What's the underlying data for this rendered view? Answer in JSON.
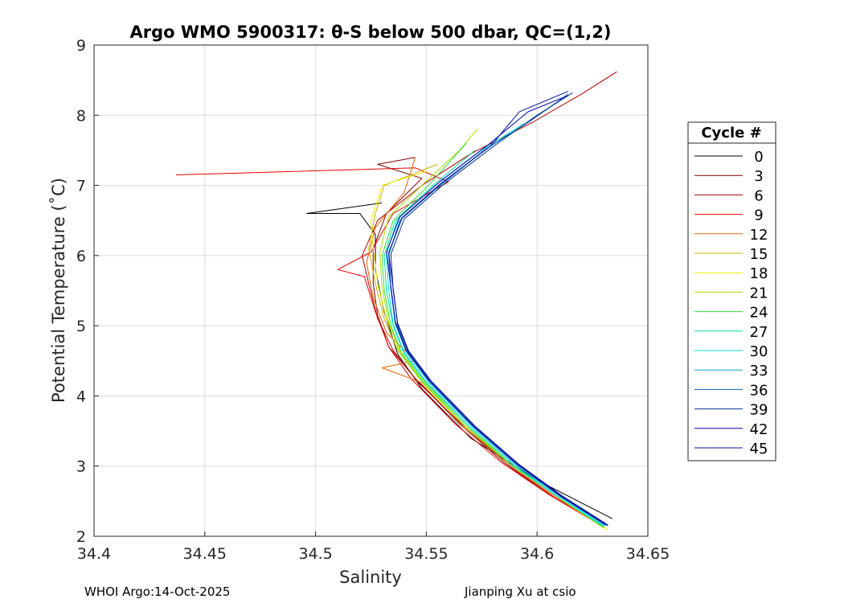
{
  "chart_data": {
    "type": "line",
    "title": "Argo WMO 5900317: θ-S below 500 dbar,  QC=(1,2)",
    "xlabel": "Salinity",
    "ylabel": "Potential Temperature (˚C)",
    "xlim": [
      34.4,
      34.65
    ],
    "ylim": [
      2,
      9
    ],
    "xticks": [
      "34.4",
      "34.45",
      "34.5",
      "34.55",
      "34.6",
      "34.65"
    ],
    "yticks": [
      "2",
      "3",
      "4",
      "5",
      "6",
      "7",
      "8",
      "9"
    ],
    "grid": true,
    "legend_title": "Cycle #",
    "legend_position": "outside-right",
    "legend": [
      {
        "label": "0",
        "color": "#000000"
      },
      {
        "label": "3",
        "color": "#7f0000"
      },
      {
        "label": "6",
        "color": "#b30000"
      },
      {
        "label": "9",
        "color": "#e60000"
      },
      {
        "label": "12",
        "color": "#e66000"
      },
      {
        "label": "15",
        "color": "#ccb000"
      },
      {
        "label": "18",
        "color": "#f0f000"
      },
      {
        "label": "21",
        "color": "#a8e000"
      },
      {
        "label": "24",
        "color": "#30e030"
      },
      {
        "label": "27",
        "color": "#00e0a0"
      },
      {
        "label": "30",
        "color": "#00e0e0"
      },
      {
        "label": "33",
        "color": "#00a8c8"
      },
      {
        "label": "36",
        "color": "#0060b0"
      },
      {
        "label": "39",
        "color": "#003090"
      },
      {
        "label": "42",
        "color": "#0000b0"
      },
      {
        "label": "45",
        "color": "#0010a0"
      }
    ],
    "base_curve": [
      {
        "s": 34.63,
        "t": 2.15
      },
      {
        "s": 34.61,
        "t": 2.55
      },
      {
        "s": 34.59,
        "t": 3.0
      },
      {
        "s": 34.57,
        "t": 3.55
      },
      {
        "s": 34.55,
        "t": 4.2
      },
      {
        "s": 34.54,
        "t": 4.6
      },
      {
        "s": 34.535,
        "t": 5.0
      },
      {
        "s": 34.533,
        "t": 5.5
      },
      {
        "s": 34.532,
        "t": 6.0
      },
      {
        "s": 34.537,
        "t": 6.5
      },
      {
        "s": 34.555,
        "t": 7.0
      },
      {
        "s": 34.575,
        "t": 7.5
      },
      {
        "s": 34.595,
        "t": 7.9
      },
      {
        "s": 34.615,
        "t": 8.3
      }
    ],
    "series": [
      {
        "name": "0",
        "color": "#000000",
        "points": [
          {
            "s": 34.634,
            "t": 2.25
          },
          {
            "s": 34.6,
            "t": 2.8
          },
          {
            "s": 34.57,
            "t": 3.4
          },
          {
            "s": 34.548,
            "t": 4.1
          },
          {
            "s": 34.537,
            "t": 4.6
          },
          {
            "s": 34.531,
            "t": 5.2
          },
          {
            "s": 34.527,
            "t": 5.8
          },
          {
            "s": 34.527,
            "t": 6.3
          },
          {
            "s": 34.52,
            "t": 6.6
          },
          {
            "s": 34.496,
            "t": 6.6
          },
          {
            "s": 34.53,
            "t": 6.75
          }
        ]
      },
      {
        "name": "3",
        "color": "#7f0000",
        "points": [
          {
            "s": 34.63,
            "t": 2.15
          },
          {
            "s": 34.605,
            "t": 2.6
          },
          {
            "s": 34.585,
            "t": 3.05
          },
          {
            "s": 34.565,
            "t": 3.6
          },
          {
            "s": 34.545,
            "t": 4.25
          },
          {
            "s": 34.533,
            "t": 4.7
          },
          {
            "s": 34.528,
            "t": 5.15
          },
          {
            "s": 34.526,
            "t": 5.6
          },
          {
            "s": 34.526,
            "t": 6.1
          },
          {
            "s": 34.532,
            "t": 6.6
          },
          {
            "s": 34.548,
            "t": 7.1
          },
          {
            "s": 34.528,
            "t": 7.3
          },
          {
            "s": 34.545,
            "t": 7.4
          }
        ]
      },
      {
        "name": "6",
        "color": "#b30000",
        "points": [
          {
            "s": 34.63,
            "t": 2.15
          },
          {
            "s": 34.608,
            "t": 2.55
          },
          {
            "s": 34.588,
            "t": 3.0
          },
          {
            "s": 34.566,
            "t": 3.6
          },
          {
            "s": 34.546,
            "t": 4.2
          },
          {
            "s": 34.535,
            "t": 4.65
          },
          {
            "s": 34.528,
            "t": 5.1
          },
          {
            "s": 34.524,
            "t": 5.6
          },
          {
            "s": 34.521,
            "t": 6.0
          },
          {
            "s": 34.528,
            "t": 6.5
          },
          {
            "s": 34.548,
            "t": 7.0
          },
          {
            "s": 34.57,
            "t": 7.45
          },
          {
            "s": 34.598,
            "t": 7.9
          },
          {
            "s": 34.62,
            "t": 8.3
          },
          {
            "s": 34.636,
            "t": 8.62
          }
        ]
      },
      {
        "name": "9",
        "color": "#e60000",
        "points": [
          {
            "s": 34.629,
            "t": 2.15
          },
          {
            "s": 34.605,
            "t": 2.6
          },
          {
            "s": 34.584,
            "t": 3.05
          },
          {
            "s": 34.563,
            "t": 3.6
          },
          {
            "s": 34.543,
            "t": 4.25
          },
          {
            "s": 34.533,
            "t": 4.7
          },
          {
            "s": 34.527,
            "t": 5.2
          },
          {
            "s": 34.522,
            "t": 5.7
          },
          {
            "s": 34.51,
            "t": 5.8
          },
          {
            "s": 34.525,
            "t": 6.05
          },
          {
            "s": 34.535,
            "t": 6.6
          },
          {
            "s": 34.56,
            "t": 7.05
          },
          {
            "s": 34.545,
            "t": 7.25
          },
          {
            "s": 34.437,
            "t": 7.15
          }
        ]
      },
      {
        "name": "12",
        "color": "#e66000",
        "points": [
          {
            "s": 34.63,
            "t": 2.12
          },
          {
            "s": 34.609,
            "t": 2.55
          },
          {
            "s": 34.588,
            "t": 3.0
          },
          {
            "s": 34.567,
            "t": 3.55
          },
          {
            "s": 34.547,
            "t": 4.2
          },
          {
            "s": 34.53,
            "t": 4.4
          },
          {
            "s": 34.545,
            "t": 4.5
          },
          {
            "s": 34.532,
            "t": 4.9
          },
          {
            "s": 34.526,
            "t": 5.4
          },
          {
            "s": 34.523,
            "t": 5.9
          },
          {
            "s": 34.527,
            "t": 6.4
          },
          {
            "s": 34.54,
            "t": 6.9
          },
          {
            "s": 34.545,
            "t": 7.4
          }
        ]
      },
      {
        "name": "15",
        "color": "#ccb000",
        "points": [
          {
            "s": 34.631,
            "t": 2.12
          },
          {
            "s": 34.61,
            "t": 2.55
          },
          {
            "s": 34.589,
            "t": 3.0
          },
          {
            "s": 34.568,
            "t": 3.55
          },
          {
            "s": 34.548,
            "t": 4.2
          },
          {
            "s": 34.537,
            "t": 4.65
          },
          {
            "s": 34.531,
            "t": 5.1
          },
          {
            "s": 34.527,
            "t": 5.6
          },
          {
            "s": 34.524,
            "t": 6.1
          },
          {
            "s": 34.527,
            "t": 6.6
          },
          {
            "s": 34.531,
            "t": 7.0
          },
          {
            "s": 34.555,
            "t": 7.3
          }
        ]
      },
      {
        "name": "18",
        "color": "#f0f000",
        "points": [
          {
            "s": 34.632,
            "t": 2.08
          },
          {
            "s": 34.611,
            "t": 2.52
          },
          {
            "s": 34.59,
            "t": 3.0
          },
          {
            "s": 34.569,
            "t": 3.55
          },
          {
            "s": 34.549,
            "t": 4.2
          },
          {
            "s": 34.538,
            "t": 4.65
          },
          {
            "s": 34.532,
            "t": 5.1
          },
          {
            "s": 34.528,
            "t": 5.6
          },
          {
            "s": 34.526,
            "t": 6.1
          },
          {
            "s": 34.525,
            "t": 6.5
          },
          {
            "s": 34.53,
            "t": 7.0
          },
          {
            "s": 34.55,
            "t": 7.2
          }
        ]
      },
      {
        "name": "21",
        "color": "#a8e000",
        "points": [
          {
            "s": 34.631,
            "t": 2.12
          },
          {
            "s": 34.61,
            "t": 2.55
          },
          {
            "s": 34.589,
            "t": 3.0
          },
          {
            "s": 34.568,
            "t": 3.55
          },
          {
            "s": 34.548,
            "t": 4.2
          },
          {
            "s": 34.538,
            "t": 4.62
          },
          {
            "s": 34.533,
            "t": 5.05
          },
          {
            "s": 34.53,
            "t": 5.55
          },
          {
            "s": 34.529,
            "t": 6.05
          },
          {
            "s": 34.533,
            "t": 6.55
          },
          {
            "s": 34.548,
            "t": 7.0
          },
          {
            "s": 34.565,
            "t": 7.5
          },
          {
            "s": 34.573,
            "t": 7.8
          }
        ]
      },
      {
        "name": "24",
        "color": "#30e030",
        "points": [
          {
            "s": 34.63,
            "t": 2.13
          },
          {
            "s": 34.61,
            "t": 2.55
          },
          {
            "s": 34.589,
            "t": 3.0
          },
          {
            "s": 34.569,
            "t": 3.55
          },
          {
            "s": 34.549,
            "t": 4.18
          },
          {
            "s": 34.539,
            "t": 4.6
          },
          {
            "s": 34.534,
            "t": 5.0
          },
          {
            "s": 34.531,
            "t": 5.5
          },
          {
            "s": 34.53,
            "t": 6.0
          },
          {
            "s": 34.535,
            "t": 6.5
          },
          {
            "s": 34.551,
            "t": 7.0
          },
          {
            "s": 34.568,
            "t": 7.6
          }
        ]
      },
      {
        "name": "27",
        "color": "#00e0a0",
        "points": [
          {
            "s": 34.63,
            "t": 2.14
          },
          {
            "s": 34.61,
            "t": 2.55
          },
          {
            "s": 34.59,
            "t": 3.0
          },
          {
            "s": 34.57,
            "t": 3.55
          },
          {
            "s": 34.55,
            "t": 4.18
          },
          {
            "s": 34.54,
            "t": 4.6
          },
          {
            "s": 34.535,
            "t": 5.0
          },
          {
            "s": 34.532,
            "t": 5.5
          },
          {
            "s": 34.531,
            "t": 6.0
          },
          {
            "s": 34.536,
            "t": 6.5
          },
          {
            "s": 34.553,
            "t": 7.0
          },
          {
            "s": 34.572,
            "t": 7.5
          }
        ]
      },
      {
        "name": "30",
        "color": "#00e0e0",
        "points": [
          {
            "s": 34.63,
            "t": 2.15
          },
          {
            "s": 34.61,
            "t": 2.55
          },
          {
            "s": 34.59,
            "t": 3.0
          },
          {
            "s": 34.57,
            "t": 3.55
          },
          {
            "s": 34.55,
            "t": 4.2
          },
          {
            "s": 34.54,
            "t": 4.62
          },
          {
            "s": 34.535,
            "t": 5.02
          },
          {
            "s": 34.533,
            "t": 5.52
          },
          {
            "s": 34.532,
            "t": 6.02
          },
          {
            "s": 34.537,
            "t": 6.52
          },
          {
            "s": 34.554,
            "t": 7.0
          },
          {
            "s": 34.574,
            "t": 7.48
          },
          {
            "s": 34.594,
            "t": 7.88
          }
        ]
      },
      {
        "name": "33",
        "color": "#00a8c8",
        "points": [
          {
            "s": 34.631,
            "t": 2.15
          },
          {
            "s": 34.611,
            "t": 2.55
          },
          {
            "s": 34.591,
            "t": 3.0
          },
          {
            "s": 34.571,
            "t": 3.55
          },
          {
            "s": 34.551,
            "t": 4.2
          },
          {
            "s": 34.541,
            "t": 4.62
          },
          {
            "s": 34.536,
            "t": 5.02
          },
          {
            "s": 34.534,
            "t": 5.52
          },
          {
            "s": 34.533,
            "t": 6.0
          },
          {
            "s": 34.538,
            "t": 6.5
          },
          {
            "s": 34.556,
            "t": 7.0
          },
          {
            "s": 34.576,
            "t": 7.5
          },
          {
            "s": 34.596,
            "t": 7.9
          },
          {
            "s": 34.612,
            "t": 8.25
          }
        ]
      },
      {
        "name": "36",
        "color": "#0060b0",
        "points": [
          {
            "s": 34.631,
            "t": 2.16
          },
          {
            "s": 34.611,
            "t": 2.56
          },
          {
            "s": 34.591,
            "t": 3.02
          },
          {
            "s": 34.571,
            "t": 3.57
          },
          {
            "s": 34.551,
            "t": 4.22
          },
          {
            "s": 34.541,
            "t": 4.64
          },
          {
            "s": 34.536,
            "t": 5.04
          },
          {
            "s": 34.534,
            "t": 5.54
          },
          {
            "s": 34.533,
            "t": 6.03
          },
          {
            "s": 34.539,
            "t": 6.53
          },
          {
            "s": 34.557,
            "t": 7.02
          },
          {
            "s": 34.577,
            "t": 7.52
          },
          {
            "s": 34.597,
            "t": 7.92
          },
          {
            "s": 34.614,
            "t": 8.3
          }
        ]
      },
      {
        "name": "39",
        "color": "#003090",
        "points": [
          {
            "s": 34.632,
            "t": 2.15
          },
          {
            "s": 34.612,
            "t": 2.55
          },
          {
            "s": 34.592,
            "t": 3.0
          },
          {
            "s": 34.572,
            "t": 3.55
          },
          {
            "s": 34.552,
            "t": 4.2
          },
          {
            "s": 34.542,
            "t": 4.62
          },
          {
            "s": 34.537,
            "t": 5.02
          },
          {
            "s": 34.535,
            "t": 5.52
          },
          {
            "s": 34.534,
            "t": 6.02
          },
          {
            "s": 34.54,
            "t": 6.52
          },
          {
            "s": 34.558,
            "t": 7.02
          },
          {
            "s": 34.58,
            "t": 7.55
          },
          {
            "s": 34.6,
            "t": 8.0
          },
          {
            "s": 34.616,
            "t": 8.32
          }
        ]
      },
      {
        "name": "42",
        "color": "#0000b0",
        "points": [
          {
            "s": 34.631,
            "t": 2.17
          },
          {
            "s": 34.611,
            "t": 2.57
          },
          {
            "s": 34.591,
            "t": 3.03
          },
          {
            "s": 34.571,
            "t": 3.58
          },
          {
            "s": 34.551,
            "t": 4.23
          },
          {
            "s": 34.541,
            "t": 4.66
          },
          {
            "s": 34.536,
            "t": 5.06
          },
          {
            "s": 34.534,
            "t": 5.56
          },
          {
            "s": 34.532,
            "t": 6.05
          },
          {
            "s": 34.538,
            "t": 6.55
          },
          {
            "s": 34.556,
            "t": 7.05
          },
          {
            "s": 34.578,
            "t": 7.58
          },
          {
            "s": 34.596,
            "t": 8.05
          },
          {
            "s": 34.614,
            "t": 8.28
          }
        ]
      },
      {
        "name": "45",
        "color": "#0010a0",
        "points": [
          {
            "s": 34.632,
            "t": 2.16
          },
          {
            "s": 34.612,
            "t": 2.56
          },
          {
            "s": 34.592,
            "t": 3.02
          },
          {
            "s": 34.572,
            "t": 3.57
          },
          {
            "s": 34.552,
            "t": 4.22
          },
          {
            "s": 34.542,
            "t": 4.64
          },
          {
            "s": 34.537,
            "t": 5.04
          },
          {
            "s": 34.535,
            "t": 5.54
          },
          {
            "s": 34.533,
            "t": 6.04
          },
          {
            "s": 34.539,
            "t": 6.54
          },
          {
            "s": 34.557,
            "t": 7.04
          },
          {
            "s": 34.579,
            "t": 7.56
          },
          {
            "s": 34.592,
            "t": 8.05
          },
          {
            "s": 34.614,
            "t": 8.34
          }
        ]
      }
    ]
  },
  "footer": {
    "left": "WHOI Argo:14-Oct-2025",
    "right": "Jianping Xu at csio"
  }
}
